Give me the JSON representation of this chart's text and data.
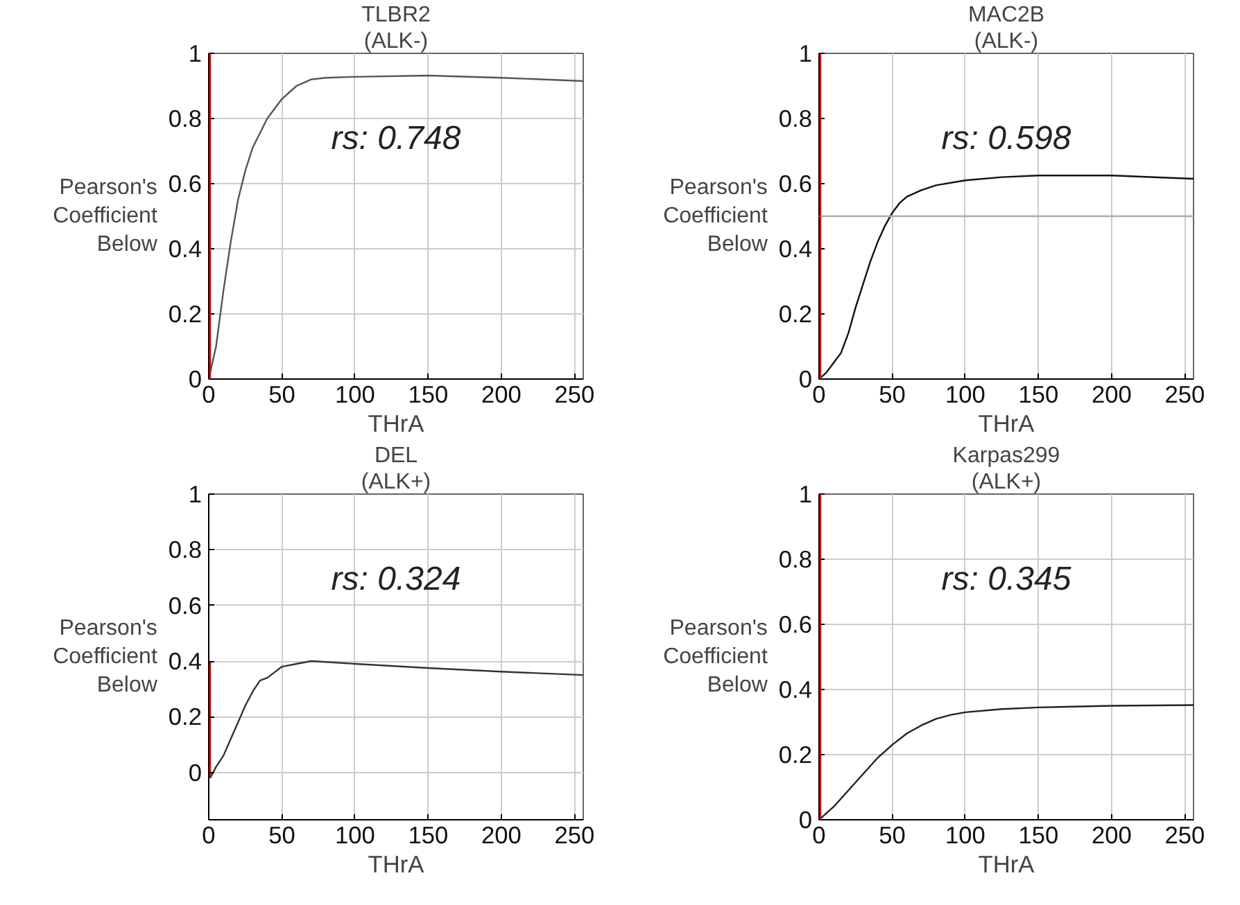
{
  "chart_data": [
    {
      "type": "line",
      "title": "TLBR2",
      "subtitle": "(ALK-)",
      "xlabel": "THrA",
      "ylabel": "Pearson's\nCoefficient\nBelow",
      "annotations": [
        "rs: 0.748"
      ],
      "xlim": [
        0,
        256
      ],
      "ylim": [
        0,
        1
      ],
      "xticks": [
        0,
        50,
        100,
        150,
        200,
        250
      ],
      "yticks": [
        0,
        0.2,
        0.4,
        0.6,
        0.8,
        1
      ],
      "grid": true,
      "ref_lines": [
        {
          "axis": "x",
          "value": 1,
          "color": "#ff0000"
        }
      ],
      "series": [
        {
          "color": "#555555",
          "x": [
            0,
            5,
            10,
            15,
            20,
            25,
            30,
            40,
            50,
            60,
            70,
            80,
            100,
            150,
            200,
            256
          ],
          "values": [
            0,
            0.1,
            0.27,
            0.42,
            0.55,
            0.64,
            0.71,
            0.8,
            0.86,
            0.9,
            0.92,
            0.925,
            0.928,
            0.932,
            0.925,
            0.915
          ]
        }
      ]
    },
    {
      "type": "line",
      "title": "MAC2B",
      "subtitle": "(ALK-)",
      "xlabel": "THrA",
      "ylabel": "Pearson's\nCoefficient\nBelow",
      "annotations": [
        "rs: 0.598"
      ],
      "xlim": [
        0,
        256
      ],
      "ylim": [
        0,
        1
      ],
      "xticks": [
        0,
        50,
        100,
        150,
        200,
        250
      ],
      "yticks": [
        0,
        0.2,
        0.4,
        0.6,
        0.8,
        1
      ],
      "grid": "x",
      "ref_lines": [
        {
          "axis": "y",
          "value": 0.5,
          "color": "#aaaaaa"
        },
        {
          "axis": "x",
          "value": 1,
          "color": "#ff0000"
        }
      ],
      "series": [
        {
          "color": "#111111",
          "x": [
            0,
            5,
            10,
            15,
            20,
            25,
            30,
            35,
            40,
            45,
            50,
            55,
            60,
            70,
            80,
            100,
            125,
            150,
            200,
            256
          ],
          "values": [
            0,
            0.02,
            0.05,
            0.08,
            0.14,
            0.22,
            0.29,
            0.36,
            0.42,
            0.47,
            0.51,
            0.54,
            0.56,
            0.58,
            0.595,
            0.61,
            0.62,
            0.625,
            0.625,
            0.615
          ]
        }
      ]
    },
    {
      "type": "line",
      "title": "DEL",
      "subtitle": "(ALK+)",
      "xlabel": "THrA",
      "ylabel": "Pearson's\nCoefficient\nBelow",
      "annotations": [
        "rs: 0.324"
      ],
      "xlim": [
        0,
        256
      ],
      "ylim": [
        -0.17,
        1
      ],
      "xticks": [
        0,
        50,
        100,
        150,
        200,
        250
      ],
      "yticks": [
        0,
        0.2,
        0.4,
        0.6,
        0.8,
        1
      ],
      "grid": true,
      "series": [
        {
          "color": "#ff0000",
          "x": [
            1,
            1
          ],
          "values": [
            -0.02,
            0.4
          ]
        },
        {
          "color": "#333333",
          "x": [
            1,
            5,
            10,
            15,
            20,
            25,
            30,
            35,
            40,
            45,
            50,
            60,
            70,
            80,
            100,
            150,
            200,
            256
          ],
          "values": [
            -0.02,
            0.02,
            0.06,
            0.12,
            0.18,
            0.24,
            0.29,
            0.33,
            0.34,
            0.36,
            0.38,
            0.39,
            0.4,
            0.397,
            0.39,
            0.375,
            0.362,
            0.35
          ]
        }
      ]
    },
    {
      "type": "line",
      "title": "Karpas299",
      "subtitle": "(ALK+)",
      "xlabel": "THrA",
      "ylabel": "Pearson's\nCoefficient\nBelow",
      "annotations": [
        "rs: 0.345"
      ],
      "xlim": [
        0,
        256
      ],
      "ylim": [
        0,
        1
      ],
      "xticks": [
        0,
        50,
        100,
        150,
        200,
        250
      ],
      "yticks": [
        0,
        0.2,
        0.4,
        0.6,
        0.8,
        1
      ],
      "grid": true,
      "ref_lines": [
        {
          "axis": "x",
          "value": 1,
          "color": "#ff0000"
        }
      ],
      "series": [
        {
          "color": "#222222",
          "x": [
            0,
            5,
            10,
            20,
            30,
            40,
            50,
            60,
            70,
            80,
            90,
            100,
            125,
            150,
            200,
            256
          ],
          "values": [
            0,
            0.02,
            0.04,
            0.09,
            0.14,
            0.19,
            0.23,
            0.265,
            0.29,
            0.31,
            0.322,
            0.33,
            0.34,
            0.345,
            0.35,
            0.352
          ]
        }
      ]
    }
  ]
}
